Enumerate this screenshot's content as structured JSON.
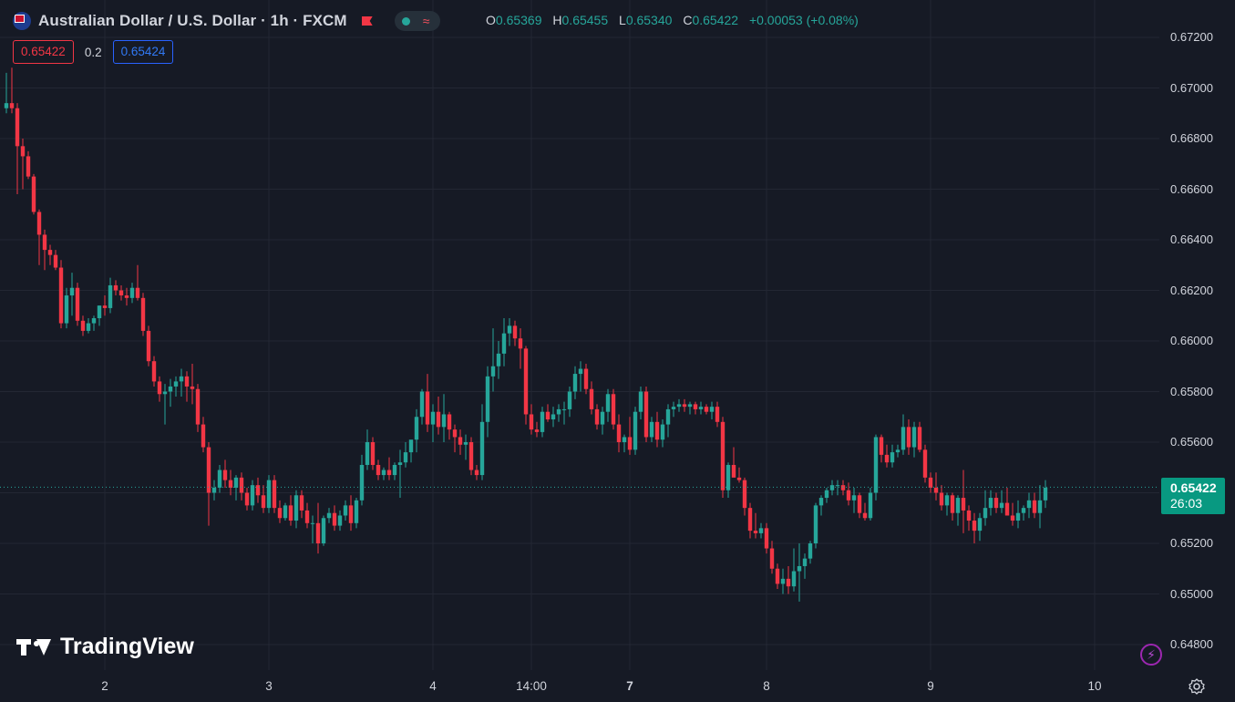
{
  "header": {
    "title": "Australian Dollar / U.S. Dollar · 1h · FXCM",
    "ohlc": {
      "o_label": "O",
      "o_value": "0.65369",
      "h_label": "H",
      "h_value": "0.65455",
      "l_label": "L",
      "l_value": "0.65340",
      "c_label": "C",
      "c_value": "0.65422",
      "change": "+0.00053 (+0.08%)"
    }
  },
  "trade": {
    "sell": "0.65422",
    "spread": "0.2",
    "buy": "0.65424"
  },
  "logo_text": "TradingView",
  "current": {
    "price": "0.65422",
    "countdown": "26:03"
  },
  "colors": {
    "background": "#161a25",
    "up": "#26a69a",
    "down": "#f23645",
    "grid": "#232733"
  },
  "chart_data": {
    "type": "candlestick",
    "title": "Australian Dollar / U.S. Dollar · 1h · FXCM",
    "ylim": [
      0.6473,
      0.6722
    ],
    "yticks": [
      "0.67200",
      "0.67000",
      "0.66800",
      "0.66600",
      "0.66400",
      "0.66200",
      "0.66000",
      "0.65800",
      "0.65600",
      "0.65400",
      "0.65200",
      "0.65000",
      "0.64800"
    ],
    "x_labels": [
      {
        "label": "2",
        "bold": false,
        "bar": 18
      },
      {
        "label": "3",
        "bold": false,
        "bar": 48
      },
      {
        "label": "4",
        "bold": false,
        "bar": 78
      },
      {
        "label": "14:00",
        "bold": false,
        "bar": 96
      },
      {
        "label": "7",
        "bold": true,
        "bar": 114
      },
      {
        "label": "8",
        "bold": false,
        "bar": 139
      },
      {
        "label": "9",
        "bold": false,
        "bar": 169
      },
      {
        "label": "10",
        "bold": false,
        "bar": 199
      }
    ],
    "grid": true,
    "ohlc": [
      [
        0.6692,
        0.6706,
        0.669,
        0.6694
      ],
      [
        0.6694,
        0.6708,
        0.669,
        0.6692
      ],
      [
        0.6692,
        0.6694,
        0.6658,
        0.6677
      ],
      [
        0.6677,
        0.668,
        0.666,
        0.6673
      ],
      [
        0.6673,
        0.6675,
        0.6664,
        0.6665
      ],
      [
        0.6665,
        0.6666,
        0.665,
        0.6651
      ],
      [
        0.6651,
        0.6652,
        0.663,
        0.6642
      ],
      [
        0.6642,
        0.6644,
        0.6628,
        0.6636
      ],
      [
        0.6636,
        0.6638,
        0.663,
        0.6634
      ],
      [
        0.6634,
        0.6636,
        0.6628,
        0.6629
      ],
      [
        0.6629,
        0.6632,
        0.6605,
        0.6607
      ],
      [
        0.6607,
        0.6621,
        0.6605,
        0.6618
      ],
      [
        0.6618,
        0.6627,
        0.661,
        0.6621
      ],
      [
        0.6621,
        0.6623,
        0.6606,
        0.6608
      ],
      [
        0.6608,
        0.661,
        0.6602,
        0.6604
      ],
      [
        0.6604,
        0.6609,
        0.6603,
        0.6607
      ],
      [
        0.6607,
        0.661,
        0.6604,
        0.6609
      ],
      [
        0.6609,
        0.6614,
        0.6606,
        0.6614
      ],
      [
        0.6614,
        0.6618,
        0.661,
        0.6613
      ],
      [
        0.6613,
        0.6625,
        0.6611,
        0.6622
      ],
      [
        0.6622,
        0.6624,
        0.6618,
        0.662
      ],
      [
        0.662,
        0.6622,
        0.6616,
        0.6618
      ],
      [
        0.6618,
        0.6621,
        0.6614,
        0.6617
      ],
      [
        0.6617,
        0.6623,
        0.6615,
        0.6621
      ],
      [
        0.6621,
        0.663,
        0.6616,
        0.6617
      ],
      [
        0.6617,
        0.6619,
        0.6602,
        0.6604
      ],
      [
        0.6604,
        0.6606,
        0.659,
        0.6592
      ],
      [
        0.6592,
        0.6594,
        0.6582,
        0.6584
      ],
      [
        0.6584,
        0.6586,
        0.6576,
        0.6579
      ],
      [
        0.6579,
        0.6583,
        0.6567,
        0.658
      ],
      [
        0.658,
        0.6585,
        0.6574,
        0.6582
      ],
      [
        0.6582,
        0.6586,
        0.6578,
        0.6584
      ],
      [
        0.6584,
        0.6589,
        0.6578,
        0.6586
      ],
      [
        0.6586,
        0.6588,
        0.6576,
        0.6582
      ],
      [
        0.6582,
        0.6591,
        0.6575,
        0.6581
      ],
      [
        0.6581,
        0.6583,
        0.6564,
        0.6567
      ],
      [
        0.6567,
        0.657,
        0.6556,
        0.6558
      ],
      [
        0.6558,
        0.656,
        0.6527,
        0.654
      ],
      [
        0.654,
        0.6545,
        0.6537,
        0.6542
      ],
      [
        0.6542,
        0.6551,
        0.654,
        0.6549
      ],
      [
        0.6549,
        0.6553,
        0.6542,
        0.6545
      ],
      [
        0.6545,
        0.6549,
        0.6539,
        0.6542
      ],
      [
        0.6542,
        0.6547,
        0.6537,
        0.6546
      ],
      [
        0.6546,
        0.6548,
        0.6537,
        0.654
      ],
      [
        0.654,
        0.6542,
        0.6533,
        0.6535
      ],
      [
        0.6535,
        0.6545,
        0.6533,
        0.6543
      ],
      [
        0.6543,
        0.6546,
        0.6536,
        0.6539
      ],
      [
        0.6539,
        0.6543,
        0.6532,
        0.6534
      ],
      [
        0.6534,
        0.6547,
        0.6532,
        0.6545
      ],
      [
        0.6545,
        0.6547,
        0.6532,
        0.6534
      ],
      [
        0.6534,
        0.6537,
        0.6528,
        0.653
      ],
      [
        0.653,
        0.6536,
        0.6529,
        0.6535
      ],
      [
        0.6535,
        0.6539,
        0.6527,
        0.6529
      ],
      [
        0.6529,
        0.6541,
        0.6526,
        0.6539
      ],
      [
        0.6539,
        0.6541,
        0.653,
        0.6533
      ],
      [
        0.6533,
        0.6536,
        0.6526,
        0.6528
      ],
      [
        0.6528,
        0.6531,
        0.652,
        0.6528
      ],
      [
        0.6528,
        0.6536,
        0.6516,
        0.652
      ],
      [
        0.652,
        0.6531,
        0.6519,
        0.653
      ],
      [
        0.653,
        0.6534,
        0.6528,
        0.6532
      ],
      [
        0.6532,
        0.6535,
        0.6525,
        0.6527
      ],
      [
        0.6527,
        0.6533,
        0.6525,
        0.6531
      ],
      [
        0.6531,
        0.6537,
        0.6529,
        0.6535
      ],
      [
        0.6535,
        0.6539,
        0.6525,
        0.6528
      ],
      [
        0.6528,
        0.6538,
        0.6526,
        0.6537
      ],
      [
        0.6537,
        0.6555,
        0.6535,
        0.6551
      ],
      [
        0.6551,
        0.6565,
        0.6549,
        0.656
      ],
      [
        0.656,
        0.6562,
        0.6549,
        0.6551
      ],
      [
        0.6551,
        0.6553,
        0.6545,
        0.6547
      ],
      [
        0.6547,
        0.655,
        0.6545,
        0.6549
      ],
      [
        0.6549,
        0.6554,
        0.6545,
        0.6547
      ],
      [
        0.6547,
        0.6552,
        0.6545,
        0.6551
      ],
      [
        0.6551,
        0.6557,
        0.6538,
        0.6552
      ],
      [
        0.6552,
        0.656,
        0.655,
        0.6556
      ],
      [
        0.6556,
        0.6559,
        0.6552,
        0.6561
      ],
      [
        0.6561,
        0.6573,
        0.6556,
        0.657
      ],
      [
        0.657,
        0.6581,
        0.6567,
        0.658
      ],
      [
        0.658,
        0.6587,
        0.6564,
        0.6567
      ],
      [
        0.6567,
        0.6575,
        0.656,
        0.6572
      ],
      [
        0.6572,
        0.6578,
        0.6563,
        0.6566
      ],
      [
        0.6566,
        0.6579,
        0.656,
        0.6571
      ],
      [
        0.6571,
        0.6572,
        0.6561,
        0.6565
      ],
      [
        0.6565,
        0.6567,
        0.6556,
        0.6562
      ],
      [
        0.6562,
        0.6565,
        0.6555,
        0.6559
      ],
      [
        0.6559,
        0.6563,
        0.6553,
        0.656
      ],
      [
        0.656,
        0.6562,
        0.6547,
        0.6549
      ],
      [
        0.6549,
        0.6551,
        0.6545,
        0.6547
      ],
      [
        0.6547,
        0.6575,
        0.6545,
        0.6568
      ],
      [
        0.6568,
        0.659,
        0.6562,
        0.6586
      ],
      [
        0.6586,
        0.6605,
        0.658,
        0.659
      ],
      [
        0.659,
        0.66,
        0.6585,
        0.6595
      ],
      [
        0.6595,
        0.6609,
        0.659,
        0.6603
      ],
      [
        0.6603,
        0.6609,
        0.6598,
        0.6606
      ],
      [
        0.6606,
        0.6608,
        0.6598,
        0.6601
      ],
      [
        0.6601,
        0.6605,
        0.6589,
        0.6597
      ],
      [
        0.6597,
        0.6598,
        0.6567,
        0.6571
      ],
      [
        0.6571,
        0.6575,
        0.6563,
        0.6565
      ],
      [
        0.6565,
        0.6568,
        0.6562,
        0.6564
      ],
      [
        0.6564,
        0.6574,
        0.6562,
        0.6572
      ],
      [
        0.6572,
        0.6575,
        0.6568,
        0.6569
      ],
      [
        0.6569,
        0.6574,
        0.6566,
        0.6571
      ],
      [
        0.6571,
        0.6575,
        0.6568,
        0.6573
      ],
      [
        0.6573,
        0.6576,
        0.6567,
        0.6573
      ],
      [
        0.6573,
        0.6582,
        0.657,
        0.658
      ],
      [
        0.658,
        0.659,
        0.6577,
        0.6587
      ],
      [
        0.6587,
        0.6592,
        0.658,
        0.6589
      ],
      [
        0.6589,
        0.6591,
        0.6579,
        0.6581
      ],
      [
        0.6581,
        0.6584,
        0.6571,
        0.6573
      ],
      [
        0.6573,
        0.6575,
        0.6565,
        0.6567
      ],
      [
        0.6567,
        0.6574,
        0.6563,
        0.6572
      ],
      [
        0.6572,
        0.6581,
        0.6568,
        0.6579
      ],
      [
        0.6579,
        0.6581,
        0.6565,
        0.6567
      ],
      [
        0.6567,
        0.6571,
        0.6556,
        0.656
      ],
      [
        0.656,
        0.6563,
        0.6556,
        0.6562
      ],
      [
        0.6562,
        0.657,
        0.6555,
        0.6557
      ],
      [
        0.6557,
        0.6574,
        0.6555,
        0.6572
      ],
      [
        0.6572,
        0.6582,
        0.6569,
        0.658
      ],
      [
        0.658,
        0.6582,
        0.656,
        0.6562
      ],
      [
        0.6562,
        0.657,
        0.656,
        0.6568
      ],
      [
        0.6568,
        0.6572,
        0.6558,
        0.6561
      ],
      [
        0.6561,
        0.6569,
        0.6558,
        0.6567
      ],
      [
        0.6567,
        0.6575,
        0.6562,
        0.6573
      ],
      [
        0.6573,
        0.6576,
        0.657,
        0.6574
      ],
      [
        0.6574,
        0.6577,
        0.6572,
        0.6575
      ],
      [
        0.6575,
        0.6577,
        0.6572,
        0.6574
      ],
      [
        0.6574,
        0.6576,
        0.6571,
        0.6575
      ],
      [
        0.6575,
        0.6576,
        0.6571,
        0.6573
      ],
      [
        0.6573,
        0.6576,
        0.6571,
        0.6574
      ],
      [
        0.6574,
        0.6575,
        0.6571,
        0.6572
      ],
      [
        0.6572,
        0.6576,
        0.6569,
        0.6574
      ],
      [
        0.6574,
        0.6576,
        0.6566,
        0.6568
      ],
      [
        0.6568,
        0.657,
        0.6538,
        0.6541
      ],
      [
        0.6541,
        0.6552,
        0.6538,
        0.6551
      ],
      [
        0.6551,
        0.6558,
        0.6548,
        0.6546
      ],
      [
        0.6546,
        0.655,
        0.6544,
        0.6545
      ],
      [
        0.6545,
        0.6546,
        0.6531,
        0.6534
      ],
      [
        0.6534,
        0.6536,
        0.6522,
        0.6525
      ],
      [
        0.6525,
        0.6532,
        0.6522,
        0.6524
      ],
      [
        0.6524,
        0.6528,
        0.6522,
        0.6526
      ],
      [
        0.6526,
        0.6528,
        0.6516,
        0.6518
      ],
      [
        0.6518,
        0.6521,
        0.6508,
        0.651
      ],
      [
        0.651,
        0.6512,
        0.6502,
        0.6504
      ],
      [
        0.6504,
        0.651,
        0.65,
        0.6506
      ],
      [
        0.6506,
        0.6511,
        0.65,
        0.6503
      ],
      [
        0.6503,
        0.6518,
        0.6501,
        0.6509
      ],
      [
        0.6509,
        0.652,
        0.6497,
        0.6511
      ],
      [
        0.6511,
        0.6516,
        0.6506,
        0.6514
      ],
      [
        0.6514,
        0.6521,
        0.6512,
        0.652
      ],
      [
        0.652,
        0.6536,
        0.6518,
        0.6535
      ],
      [
        0.6535,
        0.6539,
        0.6531,
        0.6538
      ],
      [
        0.6538,
        0.6542,
        0.6536,
        0.6541
      ],
      [
        0.6541,
        0.6545,
        0.6539,
        0.6543
      ],
      [
        0.6543,
        0.6545,
        0.6539,
        0.6543
      ],
      [
        0.6543,
        0.6545,
        0.6539,
        0.6541
      ],
      [
        0.6541,
        0.6544,
        0.6535,
        0.6537
      ],
      [
        0.6537,
        0.6542,
        0.6532,
        0.6539
      ],
      [
        0.6539,
        0.654,
        0.653,
        0.6532
      ],
      [
        0.6532,
        0.6536,
        0.6529,
        0.653
      ],
      [
        0.653,
        0.6542,
        0.6529,
        0.654
      ],
      [
        0.654,
        0.6563,
        0.6537,
        0.6562
      ],
      [
        0.6562,
        0.6563,
        0.6552,
        0.6555
      ],
      [
        0.6555,
        0.6559,
        0.655,
        0.6552
      ],
      [
        0.6552,
        0.6559,
        0.655,
        0.6556
      ],
      [
        0.6556,
        0.6559,
        0.6554,
        0.6557
      ],
      [
        0.6557,
        0.6571,
        0.6555,
        0.6566
      ],
      [
        0.6566,
        0.6569,
        0.6555,
        0.6558
      ],
      [
        0.6558,
        0.6568,
        0.6554,
        0.6566
      ],
      [
        0.6566,
        0.6568,
        0.6556,
        0.6557
      ],
      [
        0.6557,
        0.6559,
        0.6544,
        0.6546
      ],
      [
        0.6546,
        0.6548,
        0.654,
        0.6542
      ],
      [
        0.6542,
        0.6548,
        0.6537,
        0.654
      ],
      [
        0.654,
        0.6543,
        0.6533,
        0.6535
      ],
      [
        0.6535,
        0.654,
        0.6531,
        0.6539
      ],
      [
        0.6539,
        0.654,
        0.6529,
        0.6532
      ],
      [
        0.6532,
        0.6539,
        0.6527,
        0.6538
      ],
      [
        0.6538,
        0.6549,
        0.6524,
        0.6533
      ],
      [
        0.6533,
        0.6535,
        0.6525,
        0.6529
      ],
      [
        0.6529,
        0.6532,
        0.652,
        0.6525
      ],
      [
        0.6525,
        0.6532,
        0.6521,
        0.653
      ],
      [
        0.653,
        0.6541,
        0.6527,
        0.6534
      ],
      [
        0.6534,
        0.6541,
        0.6531,
        0.6538
      ],
      [
        0.6538,
        0.654,
        0.6532,
        0.6534
      ],
      [
        0.6534,
        0.6541,
        0.6532,
        0.6536
      ],
      [
        0.6536,
        0.6542,
        0.6531,
        0.6531
      ],
      [
        0.6531,
        0.6536,
        0.6527,
        0.6529
      ],
      [
        0.6529,
        0.6537,
        0.6526,
        0.6532
      ],
      [
        0.6532,
        0.6535,
        0.6529,
        0.6534
      ],
      [
        0.6534,
        0.654,
        0.653,
        0.6537
      ],
      [
        0.6537,
        0.654,
        0.653,
        0.6532
      ],
      [
        0.6532,
        0.6543,
        0.6526,
        0.6537
      ],
      [
        0.6537,
        0.6545,
        0.6534,
        0.6542
      ]
    ]
  }
}
